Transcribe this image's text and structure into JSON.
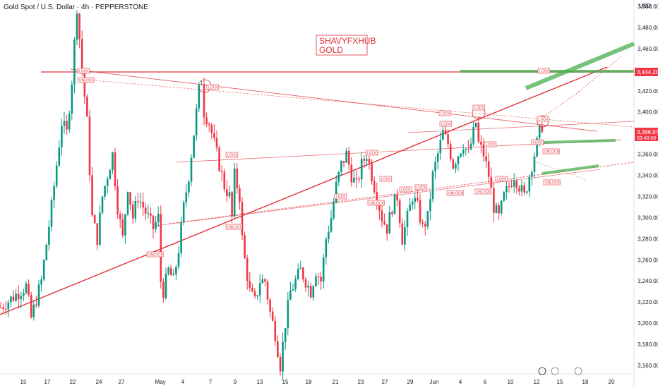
{
  "header": {
    "title": "Gold Spot / U.S. Dollar · 4h · PEPPERSTONE",
    "currency": "USD"
  },
  "watermark": [
    "SHAVYFXHUB",
    "GOLD"
  ],
  "price_tags": {
    "resistance": "3,444.20",
    "current": "3,386.97",
    "countdown": "03:40:06"
  },
  "colors": {
    "up": "#089981",
    "down": "#f23645",
    "annotation": "#e0303a",
    "target_zone": "#4caf50"
  },
  "chart_data": {
    "type": "candlestick",
    "title": "Gold Spot / U.S. Dollar · 4h · PEPPERSTONE",
    "x_ticks": [
      "15",
      "17",
      "22",
      "24",
      "27",
      "May",
      "4",
      "7",
      "9",
      "13",
      "15",
      "18",
      "21",
      "23",
      "27",
      "29",
      "Jun",
      "4",
      "6",
      "10",
      "12",
      "15",
      "18",
      "20"
    ],
    "y_ticks": [
      3500,
      3480,
      3460,
      3440,
      3420,
      3400,
      3380,
      3360,
      3340,
      3320,
      3300,
      3280,
      3260,
      3240,
      3220,
      3200,
      3180,
      3160
    ],
    "ylim": [
      3152,
      3506
    ],
    "grid": false,
    "path_points": [
      [
        0,
        3215
      ],
      [
        10,
        3235
      ],
      [
        12,
        3205
      ],
      [
        16,
        3240
      ],
      [
        20,
        3310
      ],
      [
        24,
        3390
      ],
      [
        26,
        3380
      ],
      [
        28,
        3430
      ],
      [
        30,
        3500
      ],
      [
        32,
        3440
      ],
      [
        34,
        3390
      ],
      [
        36,
        3300
      ],
      [
        38,
        3280
      ],
      [
        40,
        3320
      ],
      [
        44,
        3360
      ],
      [
        46,
        3310
      ],
      [
        48,
        3280
      ],
      [
        50,
        3330
      ],
      [
        52,
        3300
      ],
      [
        54,
        3320
      ],
      [
        56,
        3310
      ],
      [
        58,
        3300
      ],
      [
        60,
        3290
      ],
      [
        62,
        3300
      ],
      [
        63,
        3240
      ],
      [
        64,
        3230
      ],
      [
        66,
        3250
      ],
      [
        68,
        3240
      ],
      [
        70,
        3270
      ],
      [
        72,
        3310
      ],
      [
        74,
        3340
      ],
      [
        76,
        3380
      ],
      [
        78,
        3420
      ],
      [
        79,
        3430
      ],
      [
        80,
        3400
      ],
      [
        82,
        3390
      ],
      [
        84,
        3370
      ],
      [
        86,
        3350
      ],
      [
        88,
        3330
      ],
      [
        90,
        3320
      ],
      [
        91,
        3300
      ],
      [
        92,
        3340
      ],
      [
        94,
        3320
      ],
      [
        95,
        3280
      ],
      [
        96,
        3260
      ],
      [
        98,
        3230
      ],
      [
        100,
        3220
      ],
      [
        102,
        3240
      ],
      [
        104,
        3240
      ],
      [
        106,
        3210
      ],
      [
        108,
        3190
      ],
      [
        110,
        3160
      ],
      [
        112,
        3200
      ],
      [
        114,
        3230
      ],
      [
        116,
        3240
      ],
      [
        118,
        3250
      ],
      [
        120,
        3240
      ],
      [
        122,
        3230
      ],
      [
        124,
        3250
      ],
      [
        126,
        3240
      ],
      [
        128,
        3280
      ],
      [
        130,
        3300
      ],
      [
        132,
        3330
      ],
      [
        134,
        3350
      ],
      [
        136,
        3360
      ],
      [
        138,
        3340
      ],
      [
        140,
        3330
      ],
      [
        142,
        3350
      ],
      [
        144,
        3360
      ],
      [
        146,
        3340
      ],
      [
        148,
        3320
      ],
      [
        150,
        3300
      ],
      [
        152,
        3290
      ],
      [
        154,
        3310
      ],
      [
        156,
        3320
      ],
      [
        157,
        3300
      ],
      [
        158,
        3280
      ],
      [
        160,
        3300
      ],
      [
        162,
        3320
      ],
      [
        164,
        3310
      ],
      [
        166,
        3290
      ],
      [
        168,
        3300
      ],
      [
        170,
        3340
      ],
      [
        172,
        3360
      ],
      [
        174,
        3380
      ],
      [
        176,
        3370
      ],
      [
        178,
        3350
      ],
      [
        180,
        3360
      ],
      [
        182,
        3370
      ],
      [
        184,
        3360
      ],
      [
        186,
        3380
      ],
      [
        187,
        3390
      ],
      [
        188,
        3370
      ],
      [
        190,
        3360
      ],
      [
        192,
        3340
      ],
      [
        194,
        3310
      ],
      [
        196,
        3300
      ],
      [
        198,
        3320
      ],
      [
        200,
        3330
      ],
      [
        202,
        3340
      ],
      [
        204,
        3330
      ],
      [
        206,
        3320
      ],
      [
        208,
        3340
      ],
      [
        210,
        3360
      ],
      [
        211,
        3370
      ],
      [
        212,
        3380
      ],
      [
        213,
        3386.97
      ]
    ],
    "annotations": {
      "lock_labels": [
        "LOCK",
        "UNLOCK"
      ],
      "resistance_level": 3444.2,
      "current_price": 3386.97
    }
  }
}
